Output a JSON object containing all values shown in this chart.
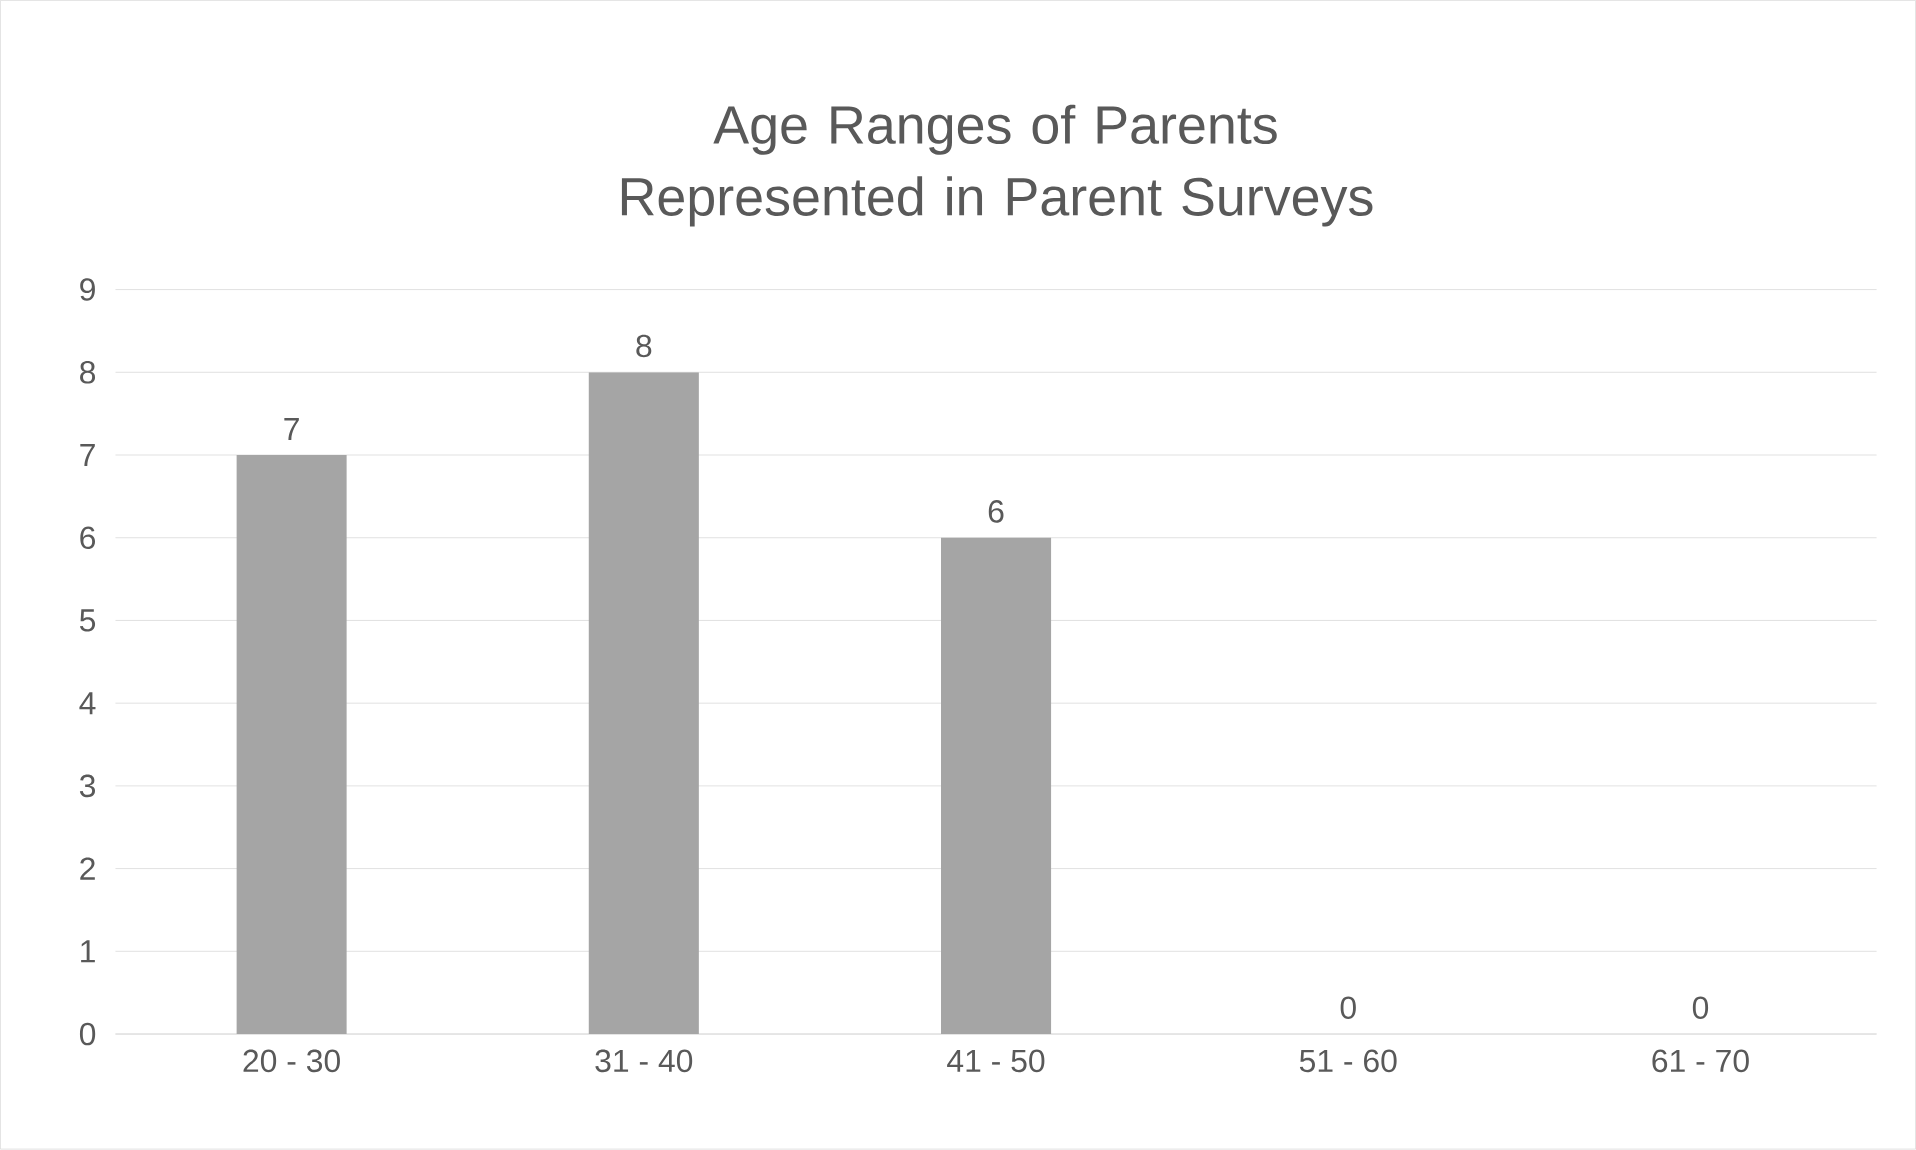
{
  "chart_data": {
    "type": "bar",
    "title": "Age Ranges of Parents Represented in Parent Surveys",
    "categories": [
      "20 - 30",
      "31 - 40",
      "41 - 50",
      "51 - 60",
      "61 - 70"
    ],
    "values": [
      7,
      8,
      6,
      0,
      0
    ],
    "color": "#a5a5a5",
    "ylim": [
      0,
      9
    ],
    "yticks": [
      0,
      1,
      2,
      3,
      4,
      5,
      6,
      7,
      8,
      9
    ],
    "grid": "y",
    "data_labels": true
  }
}
